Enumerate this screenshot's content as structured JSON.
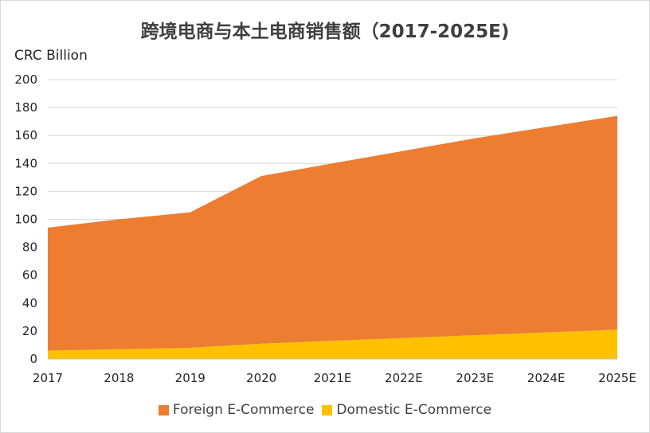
{
  "chart_data": {
    "type": "area",
    "title": "跨境电商与本土电商销售额（2017-2025E)",
    "ylabel": "CRC Billion",
    "xlabel": "",
    "categories": [
      "2017",
      "2018",
      "2019",
      "2020",
      "2021E",
      "2022E",
      "2023E",
      "2024E",
      "2025E"
    ],
    "ylim": [
      0,
      200
    ],
    "yticks": [
      0,
      20,
      40,
      60,
      80,
      100,
      120,
      140,
      160,
      180,
      200
    ],
    "grid": true,
    "stacked": true,
    "legend_position": "bottom",
    "series": [
      {
        "name": "Domestic E-Commerce",
        "color": "#ffc000",
        "values": [
          6,
          7,
          8,
          11,
          13,
          15,
          17,
          19,
          21
        ]
      },
      {
        "name": "Foreign E-Commerce",
        "color": "#ed7d31",
        "values": [
          88,
          93,
          97,
          120,
          127,
          134,
          141,
          147,
          153
        ]
      }
    ]
  },
  "legend": [
    {
      "label": "Foreign E-Commerce",
      "color": "#ed7d31"
    },
    {
      "label": "Domestic E-Commerce",
      "color": "#ffc000"
    }
  ]
}
